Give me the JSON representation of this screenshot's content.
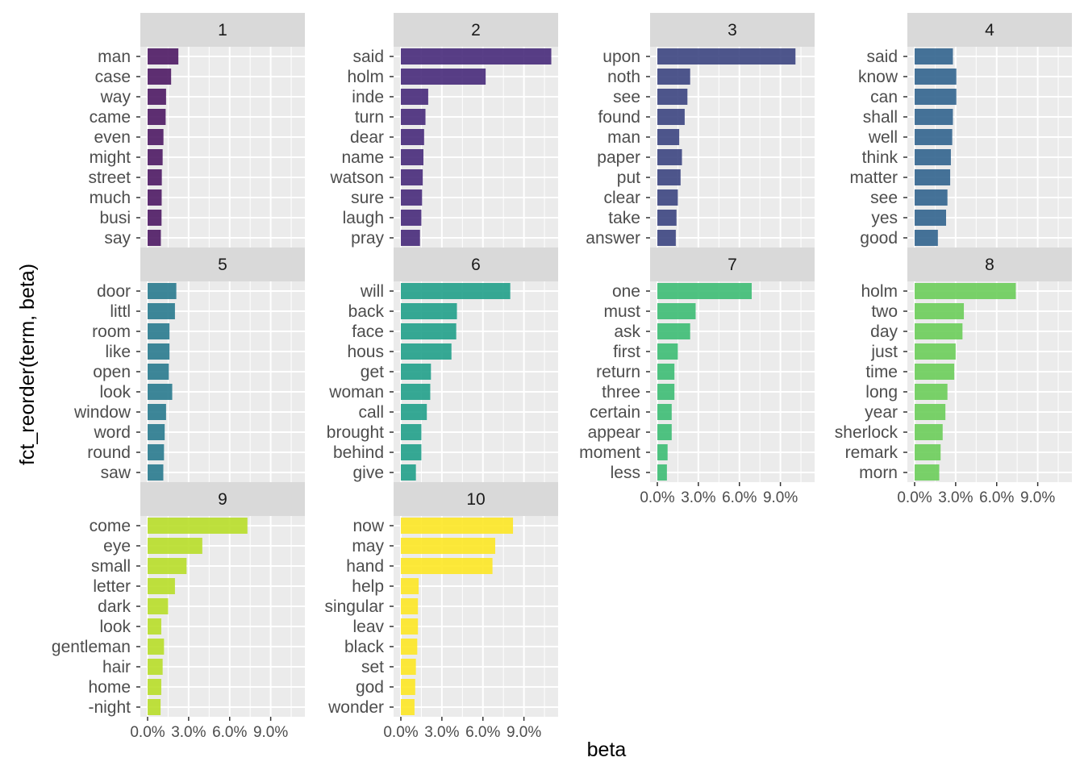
{
  "chart_data": {
    "type": "bar",
    "orientation": "horizontal",
    "facet_layout": "wrap-4-columns",
    "xlabel": "beta",
    "ylabel": "fct_reorder(term, beta)",
    "xlim": [
      0,
      0.115
    ],
    "x_ticks": [
      0,
      0.03,
      0.06,
      0.09
    ],
    "x_tick_labels": [
      "0.0%",
      "3.0%",
      "6.0%",
      "9.0%"
    ],
    "grid": true,
    "legend": "none",
    "panels": [
      {
        "label": "1",
        "color": "#4E1A64",
        "terms": [
          "man",
          "case",
          "way",
          "came",
          "even",
          "might",
          "street",
          "much",
          "busi",
          "say"
        ],
        "values": [
          0.0225,
          0.0172,
          0.0135,
          0.0132,
          0.0116,
          0.011,
          0.0104,
          0.0103,
          0.0102,
          0.0097
        ]
      },
      {
        "label": "2",
        "color": "#472A7A",
        "terms": [
          "said",
          "holm",
          "inde",
          "turn",
          "dear",
          "name",
          "watson",
          "sure",
          "laugh",
          "pray"
        ],
        "values": [
          0.11,
          0.062,
          0.02,
          0.018,
          0.017,
          0.0165,
          0.016,
          0.0155,
          0.015,
          0.014
        ]
      },
      {
        "label": "3",
        "color": "#3C4581",
        "terms": [
          "upon",
          "noth",
          "see",
          "found",
          "man",
          "paper",
          "put",
          "clear",
          "take",
          "answer"
        ],
        "values": [
          0.101,
          0.024,
          0.022,
          0.02,
          0.016,
          0.018,
          0.017,
          0.015,
          0.014,
          0.0135
        ]
      },
      {
        "label": "4",
        "color": "#32648E",
        "terms": [
          "said",
          "know",
          "can",
          "shall",
          "well",
          "think",
          "matter",
          "see",
          "yes",
          "good"
        ],
        "values": [
          0.028,
          0.0305,
          0.0305,
          0.028,
          0.0275,
          0.0265,
          0.026,
          0.024,
          0.023,
          0.017
        ]
      },
      {
        "label": "5",
        "color": "#297A8E",
        "terms": [
          "door",
          "littl",
          "room",
          "like",
          "open",
          "look",
          "window",
          "word",
          "round",
          "saw"
        ],
        "values": [
          0.021,
          0.02,
          0.016,
          0.016,
          0.0155,
          0.018,
          0.0135,
          0.0125,
          0.012,
          0.0115
        ]
      },
      {
        "label": "6",
        "color": "#21A08A",
        "terms": [
          "will",
          "back",
          "face",
          "hous",
          "get",
          "woman",
          "call",
          "brought",
          "behind",
          "give"
        ],
        "values": [
          0.08,
          0.041,
          0.0405,
          0.037,
          0.022,
          0.0215,
          0.019,
          0.015,
          0.015,
          0.011
        ]
      },
      {
        "label": "7",
        "color": "#3DBC74",
        "terms": [
          "one",
          "must",
          "ask",
          "first",
          "return",
          "three",
          "certain",
          "appear",
          "moment",
          "less"
        ],
        "values": [
          0.069,
          0.028,
          0.024,
          0.015,
          0.0125,
          0.0125,
          0.0105,
          0.0105,
          0.0075,
          0.007
        ]
      },
      {
        "label": "8",
        "color": "#6CCD5A",
        "terms": [
          "holm",
          "two",
          "day",
          "just",
          "time",
          "long",
          "year",
          "sherlock",
          "remark",
          "morn"
        ],
        "values": [
          0.074,
          0.036,
          0.035,
          0.03,
          0.029,
          0.024,
          0.0225,
          0.0205,
          0.019,
          0.018
        ]
      },
      {
        "label": "9",
        "color": "#B8DE29",
        "terms": [
          "come",
          "eye",
          "small",
          "letter",
          "dark",
          "look",
          "gentleman",
          "hair",
          "home",
          "-night"
        ],
        "values": [
          0.073,
          0.04,
          0.0285,
          0.02,
          0.015,
          0.01,
          0.012,
          0.011,
          0.01,
          0.0095
        ]
      },
      {
        "label": "10",
        "color": "#FDE725",
        "terms": [
          "now",
          "may",
          "hand",
          "help",
          "singular",
          "leav",
          "black",
          "set",
          "god",
          "wonder"
        ],
        "values": [
          0.082,
          0.069,
          0.067,
          0.013,
          0.0125,
          0.0125,
          0.012,
          0.011,
          0.0105,
          0.01
        ]
      }
    ]
  }
}
